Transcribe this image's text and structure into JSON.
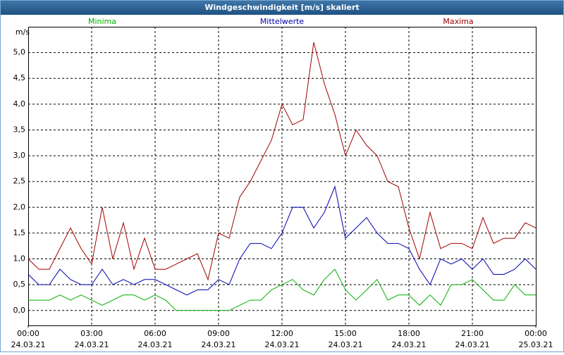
{
  "chart_data": {
    "type": "line",
    "title": "Windgeschwindigkeit [m/s] skaliert",
    "y_label": "m/s",
    "x": [
      "24.03.21 00:00",
      "24.03.21 00:30",
      "24.03.21 01:00",
      "24.03.21 01:30",
      "24.03.21 02:00",
      "24.03.21 02:30",
      "24.03.21 03:00",
      "24.03.21 03:30",
      "24.03.21 04:00",
      "24.03.21 04:30",
      "24.03.21 05:00",
      "24.03.21 05:30",
      "24.03.21 06:00",
      "24.03.21 06:30",
      "24.03.21 07:00",
      "24.03.21 07:30",
      "24.03.21 08:00",
      "24.03.21 08:30",
      "24.03.21 09:00",
      "24.03.21 09:30",
      "24.03.21 10:00",
      "24.03.21 10:30",
      "24.03.21 11:00",
      "24.03.21 11:30",
      "24.03.21 12:00",
      "24.03.21 12:30",
      "24.03.21 13:00",
      "24.03.21 13:30",
      "24.03.21 14:00",
      "24.03.21 14:30",
      "24.03.21 15:00",
      "24.03.21 15:30",
      "24.03.21 16:00",
      "24.03.21 16:30",
      "24.03.21 17:00",
      "24.03.21 17:30",
      "24.03.21 18:00",
      "24.03.21 18:30",
      "24.03.21 19:00",
      "24.03.21 19:30",
      "24.03.21 20:00",
      "24.03.21 20:30",
      "24.03.21 21:00",
      "24.03.21 21:30",
      "24.03.21 22:00",
      "24.03.21 22:30",
      "24.03.21 23:00",
      "24.03.21 23:30",
      "25.03.21 00:00"
    ],
    "series": [
      {
        "name": "Minima",
        "color": "#00b000",
        "values": [
          0.2,
          0.2,
          0.2,
          0.3,
          0.2,
          0.3,
          0.2,
          0.1,
          0.2,
          0.3,
          0.3,
          0.2,
          0.3,
          0.2,
          0.0,
          0.0,
          0.0,
          0.0,
          0.0,
          0.0,
          0.1,
          0.2,
          0.2,
          0.4,
          0.5,
          0.6,
          0.4,
          0.3,
          0.6,
          0.8,
          0.4,
          0.2,
          0.4,
          0.6,
          0.2,
          0.3,
          0.3,
          0.1,
          0.3,
          0.1,
          0.5,
          0.5,
          0.6,
          0.4,
          0.2,
          0.2,
          0.5,
          0.3,
          0.3
        ]
      },
      {
        "name": "Mittelwerte",
        "color": "#0000b0",
        "values": [
          0.7,
          0.5,
          0.5,
          0.8,
          0.6,
          0.5,
          0.5,
          0.8,
          0.5,
          0.6,
          0.5,
          0.6,
          0.6,
          0.5,
          0.4,
          0.3,
          0.4,
          0.4,
          0.6,
          0.5,
          1.0,
          1.3,
          1.3,
          1.2,
          1.5,
          2.0,
          2.0,
          1.6,
          1.9,
          2.4,
          1.4,
          1.6,
          1.8,
          1.5,
          1.3,
          1.3,
          1.2,
          0.8,
          0.5,
          1.0,
          0.9,
          1.0,
          0.8,
          1.0,
          0.7,
          0.7,
          0.8,
          1.0,
          0.8
        ]
      },
      {
        "name": "Maxima",
        "color": "#a00000",
        "values": [
          1.0,
          0.8,
          0.8,
          1.2,
          1.6,
          1.2,
          0.9,
          2.0,
          1.0,
          1.7,
          0.8,
          1.4,
          0.8,
          0.8,
          0.9,
          1.0,
          1.1,
          0.6,
          1.5,
          1.4,
          2.2,
          2.5,
          2.9,
          3.3,
          4.0,
          3.6,
          3.7,
          5.2,
          4.4,
          3.8,
          3.0,
          3.5,
          3.2,
          3.0,
          2.5,
          2.4,
          1.6,
          1.0,
          1.9,
          1.2,
          1.3,
          1.3,
          1.2,
          1.8,
          1.3,
          1.4,
          1.4,
          1.7,
          1.6
        ]
      }
    ],
    "xlim": [
      "24.03.21 00:00",
      "25.03.21 00:00"
    ],
    "xticks": [
      {
        "value": "24.03.21 00:00",
        "label": [
          "00:00",
          "24.03.21"
        ]
      },
      {
        "value": "24.03.21 03:00",
        "label": [
          "03:00",
          "24.03.21"
        ]
      },
      {
        "value": "24.03.21 06:00",
        "label": [
          "06:00",
          "24.03.21"
        ]
      },
      {
        "value": "24.03.21 09:00",
        "label": [
          "09:00",
          "24.03.21"
        ]
      },
      {
        "value": "24.03.21 12:00",
        "label": [
          "12:00",
          "24.03.21"
        ]
      },
      {
        "value": "24.03.21 15:00",
        "label": [
          "15:00",
          "24.03.21"
        ]
      },
      {
        "value": "24.03.21 18:00",
        "label": [
          "18:00",
          "24.03.21"
        ]
      },
      {
        "value": "24.03.21 21:00",
        "label": [
          "21:00",
          "24.03.21"
        ]
      },
      {
        "value": "25.03.21 00:00",
        "label": [
          "00:00",
          "25.03.21"
        ]
      }
    ],
    "ylim": [
      -0.29,
      5.5
    ],
    "yticks": [
      {
        "value": 0,
        "label": "0,0"
      },
      {
        "value": 0.5,
        "label": "0,5"
      },
      {
        "value": 1,
        "label": "1,0"
      },
      {
        "value": 1.5,
        "label": "1,5"
      },
      {
        "value": 2,
        "label": "2,0"
      },
      {
        "value": 2.5,
        "label": "2,5"
      },
      {
        "value": 3,
        "label": "3,0"
      },
      {
        "value": 3.5,
        "label": "3,5"
      },
      {
        "value": 4,
        "label": "4,0"
      },
      {
        "value": 4.5,
        "label": "4,5"
      },
      {
        "value": 5,
        "label": "5,0"
      }
    ],
    "grid": true
  }
}
